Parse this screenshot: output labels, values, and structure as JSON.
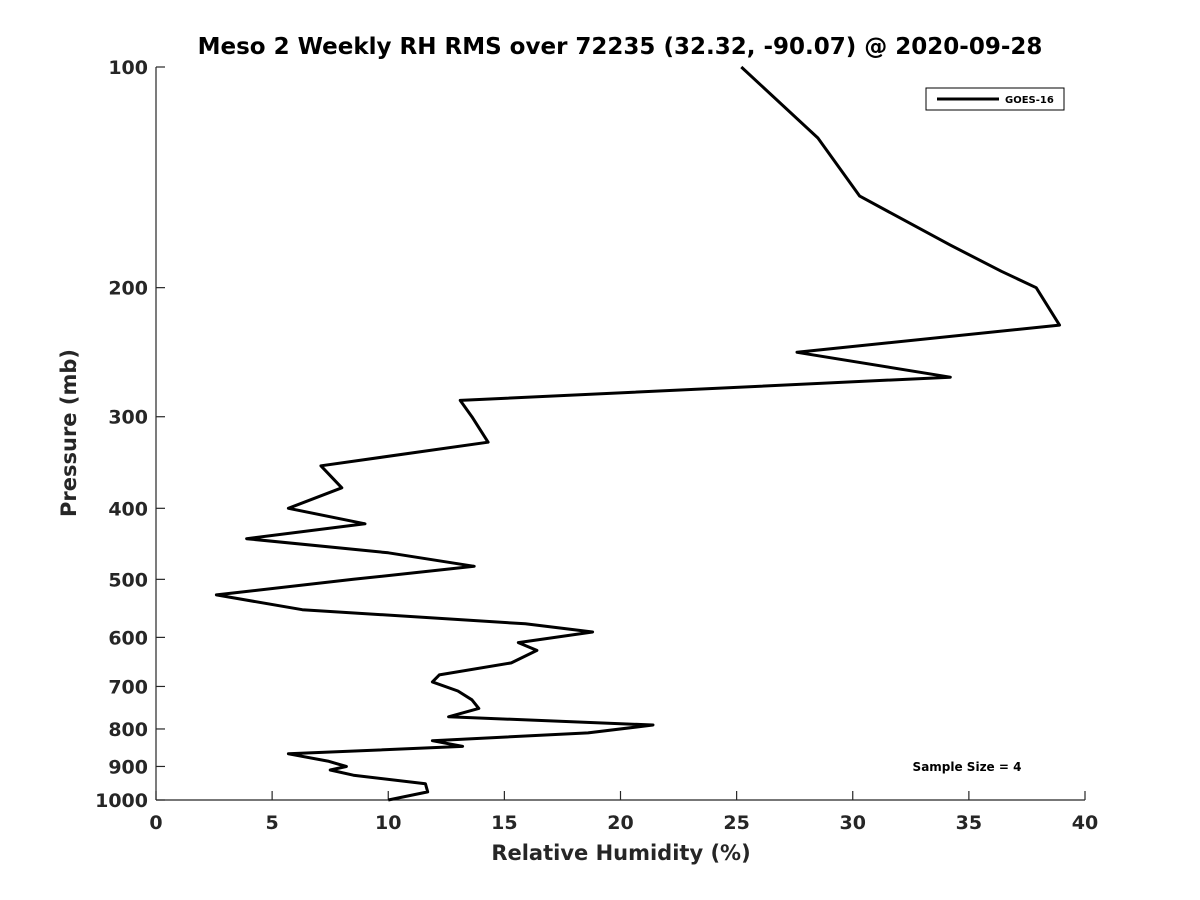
{
  "chart_data": {
    "type": "line",
    "title": "Meso 2 Weekly RH RMS over 72235 (32.32, -90.07) @ 2020-09-28",
    "xlabel": "Relative Humidity (%)",
    "ylabel": "Pressure (mb)",
    "xlim": [
      0,
      40
    ],
    "ylim": [
      100,
      1000
    ],
    "yscale": "log",
    "yreversed": true,
    "xticks": [
      0,
      5,
      10,
      15,
      20,
      25,
      30,
      35,
      40
    ],
    "xtick_labels": [
      "0",
      "5",
      "10",
      "15",
      "20",
      "25",
      "30",
      "35",
      "40"
    ],
    "yticks": [
      100,
      200,
      300,
      400,
      500,
      600,
      700,
      800,
      900,
      1000
    ],
    "ytick_labels": [
      "100",
      "200",
      "300",
      "400",
      "500",
      "600",
      "700",
      "800",
      "900",
      "1000"
    ],
    "legend": {
      "entries": [
        "GOES-16"
      ],
      "location": "top-right"
    },
    "annotation": "Sample Size = 4",
    "series": [
      {
        "name": "GOES-16",
        "color": "#000000",
        "points": [
          [
            25.2,
            100
          ],
          [
            28.5,
            125
          ],
          [
            30.3,
            150
          ],
          [
            34.2,
            175
          ],
          [
            36.4,
            190
          ],
          [
            37.9,
            200
          ],
          [
            38.9,
            225
          ],
          [
            27.6,
            245
          ],
          [
            34.2,
            265
          ],
          [
            13.1,
            285
          ],
          [
            13.6,
            300
          ],
          [
            14.3,
            325
          ],
          [
            7.1,
            350
          ],
          [
            8.0,
            375
          ],
          [
            5.7,
            400
          ],
          [
            9.0,
            420
          ],
          [
            3.9,
            440
          ],
          [
            10.0,
            460
          ],
          [
            13.7,
            480
          ],
          [
            8.5,
            500
          ],
          [
            2.6,
            525
          ],
          [
            6.3,
            550
          ],
          [
            15.9,
            575
          ],
          [
            18.8,
            590
          ],
          [
            15.6,
            610
          ],
          [
            16.4,
            625
          ],
          [
            15.3,
            650
          ],
          [
            12.2,
            675
          ],
          [
            11.9,
            690
          ],
          [
            13.0,
            710
          ],
          [
            13.6,
            730
          ],
          [
            13.9,
            750
          ],
          [
            12.6,
            770
          ],
          [
            21.4,
            790
          ],
          [
            18.6,
            810
          ],
          [
            11.9,
            830
          ],
          [
            13.2,
            845
          ],
          [
            5.7,
            865
          ],
          [
            7.4,
            885
          ],
          [
            8.2,
            900
          ],
          [
            7.5,
            910
          ],
          [
            8.5,
            925
          ],
          [
            11.6,
            950
          ],
          [
            11.7,
            975
          ],
          [
            10.0,
            1000
          ]
        ]
      }
    ]
  }
}
